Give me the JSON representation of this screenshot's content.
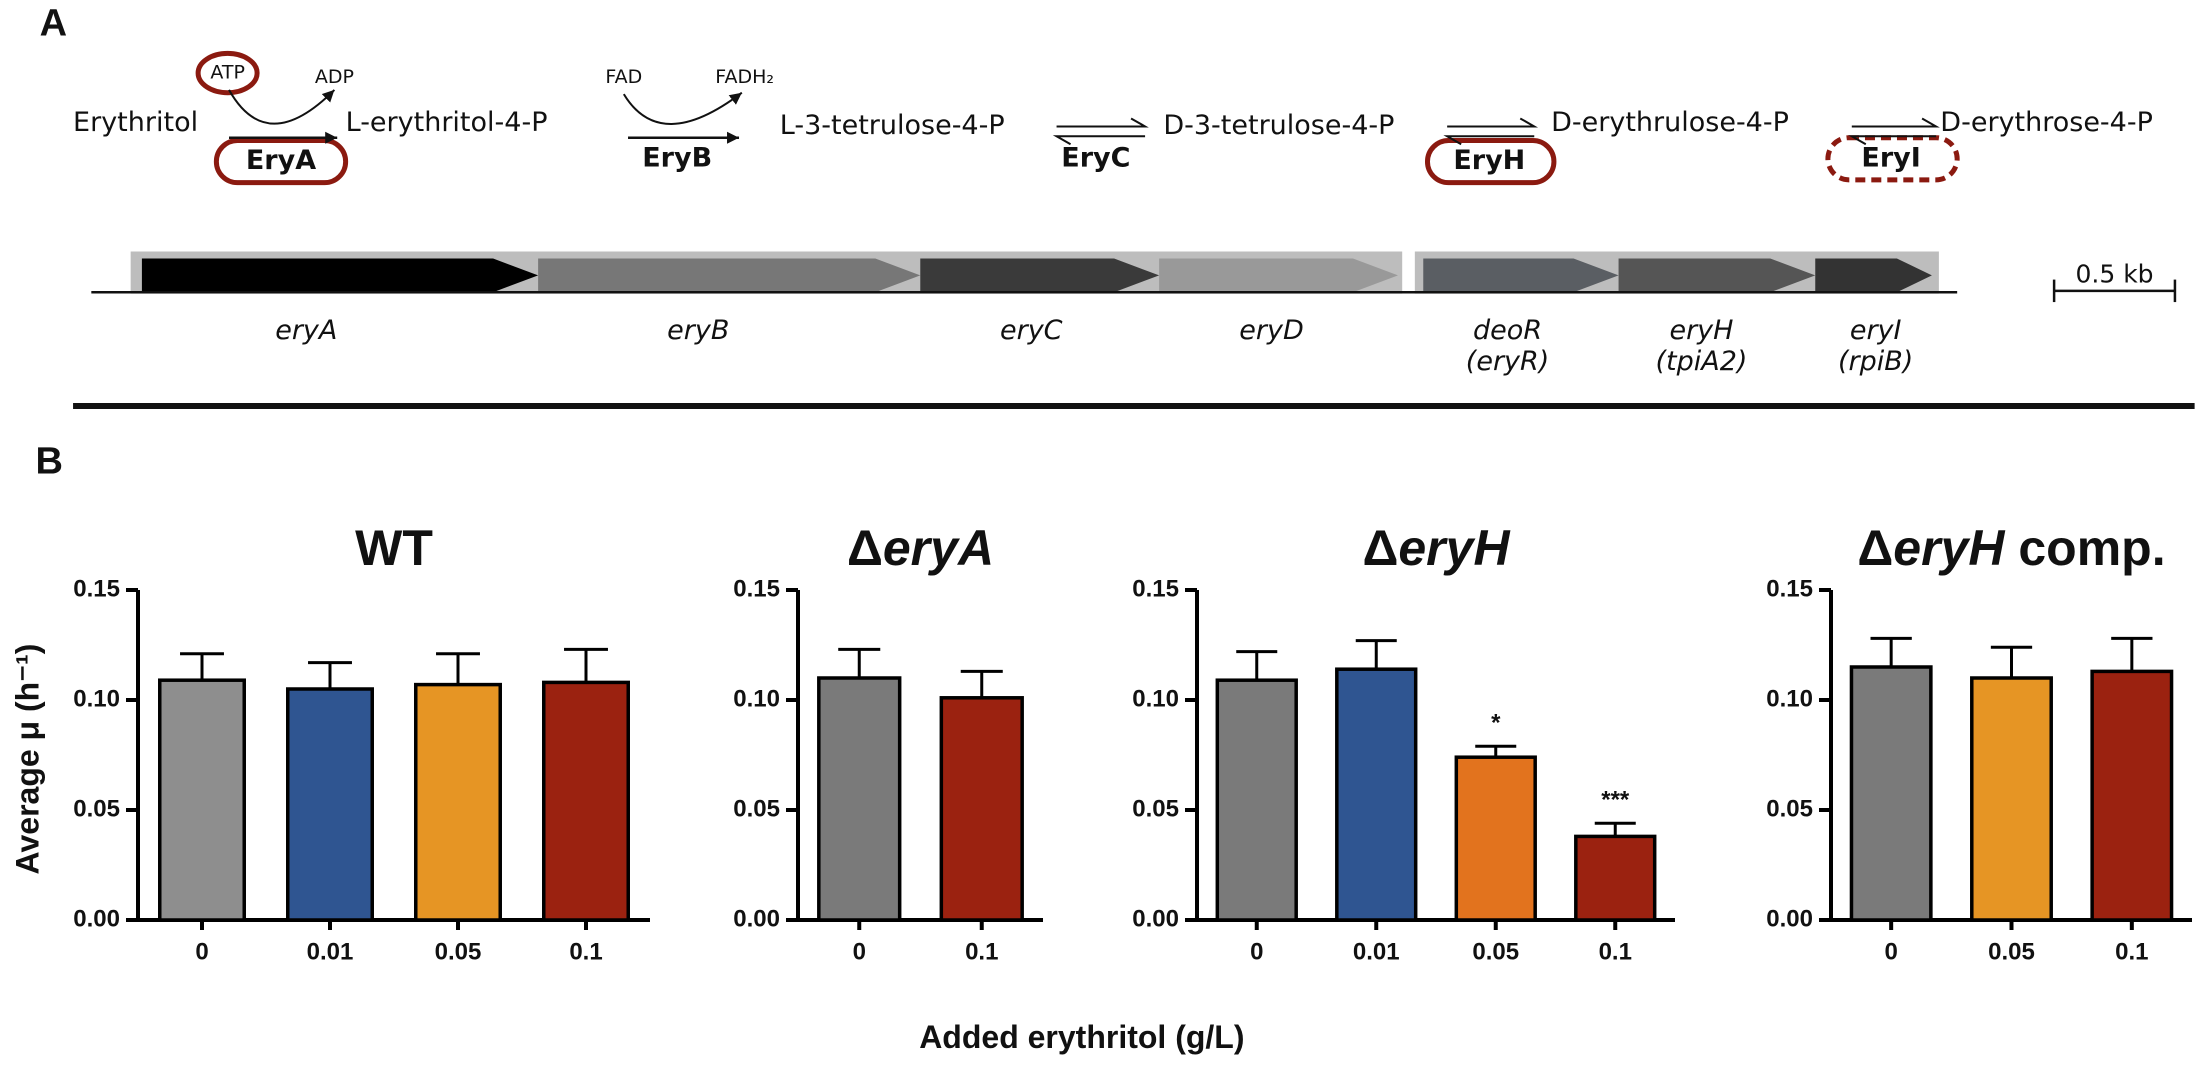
{
  "panel_a": {
    "label": "A",
    "metabolites": [
      "Erythritol",
      "L-erythritol-4-P",
      "L-3-tetrulose-4-P",
      "D-3-tetrulose-4-P",
      "D-erythrulose-4-P",
      "D-erythrose-4-P"
    ],
    "enzymes": [
      "EryA",
      "EryB",
      "EryC",
      "EryH",
      "EryI"
    ],
    "cofactors": [
      "ATP",
      "ADP",
      "FAD",
      "FADH₂"
    ],
    "genes": [
      {
        "name": "eryA"
      },
      {
        "name": "eryB"
      },
      {
        "name": "eryC"
      },
      {
        "name": "eryD"
      },
      {
        "name": "deoR",
        "alias": "(eryR)"
      },
      {
        "name": "eryH",
        "alias": "(tpiA2)"
      },
      {
        "name": "eryI",
        "alias": "(rpiB)"
      }
    ],
    "scale_bar": "0.5 kb"
  },
  "panel_b": {
    "label": "B",
    "x_label": "Added erythritol (g/L)",
    "y_label": "Average μ (h⁻¹)"
  },
  "chart_data": [
    {
      "type": "bar",
      "title": "WT",
      "categories": [
        "0",
        "0.01",
        "0.05",
        "0.1"
      ],
      "values": [
        0.109,
        0.105,
        0.107,
        0.108
      ],
      "errors": [
        0.012,
        0.012,
        0.014,
        0.015
      ],
      "colors": [
        "#8e8e8e",
        "#2f5591",
        "#e69524",
        "#9b2210"
      ],
      "ylim": [
        0,
        0.15
      ],
      "yticks": [
        {
          "value": 0,
          "label": "0.00"
        },
        {
          "value": 0.05,
          "label": "0.05"
        },
        {
          "value": 0.1,
          "label": "0.10"
        },
        {
          "value": 0.15,
          "label": "0.15"
        }
      ]
    },
    {
      "type": "bar",
      "title": "ΔeryA",
      "categories": [
        "0",
        "0.1"
      ],
      "values": [
        0.11,
        0.101
      ],
      "errors": [
        0.013,
        0.012
      ],
      "colors": [
        "#7a7a7a",
        "#9b2210"
      ],
      "ylim": [
        0,
        0.15
      ],
      "yticks": [
        {
          "value": 0,
          "label": "0.00"
        },
        {
          "value": 0.05,
          "label": "0.05"
        },
        {
          "value": 0.1,
          "label": "0.10"
        },
        {
          "value": 0.15,
          "label": "0.15"
        }
      ]
    },
    {
      "type": "bar",
      "title": "ΔeryH",
      "categories": [
        "0",
        "0.01",
        "0.05",
        "0.1"
      ],
      "values": [
        0.109,
        0.114,
        0.074,
        0.038
      ],
      "errors": [
        0.013,
        0.013,
        0.005,
        0.006
      ],
      "annotations": [
        null,
        null,
        "*",
        "***"
      ],
      "colors": [
        "#7a7a7a",
        "#2f5591",
        "#e2731e",
        "#9b2210"
      ],
      "ylim": [
        0,
        0.15
      ],
      "yticks": [
        {
          "value": 0,
          "label": "0.00"
        },
        {
          "value": 0.05,
          "label": "0.05"
        },
        {
          "value": 0.1,
          "label": "0.10"
        },
        {
          "value": 0.15,
          "label": "0.15"
        }
      ]
    },
    {
      "type": "bar",
      "title": "ΔeryH comp.",
      "categories": [
        "0",
        "0.05",
        "0.1"
      ],
      "values": [
        0.115,
        0.11,
        0.113
      ],
      "errors": [
        0.013,
        0.014,
        0.015
      ],
      "colors": [
        "#7a7a7a",
        "#e69524",
        "#9b2210"
      ],
      "ylim": [
        0,
        0.15
      ],
      "yticks": [
        {
          "value": 0,
          "label": "0.00"
        },
        {
          "value": 0.05,
          "label": "0.05"
        },
        {
          "value": 0.1,
          "label": "0.10"
        },
        {
          "value": 0.15,
          "label": "0.15"
        }
      ]
    }
  ]
}
